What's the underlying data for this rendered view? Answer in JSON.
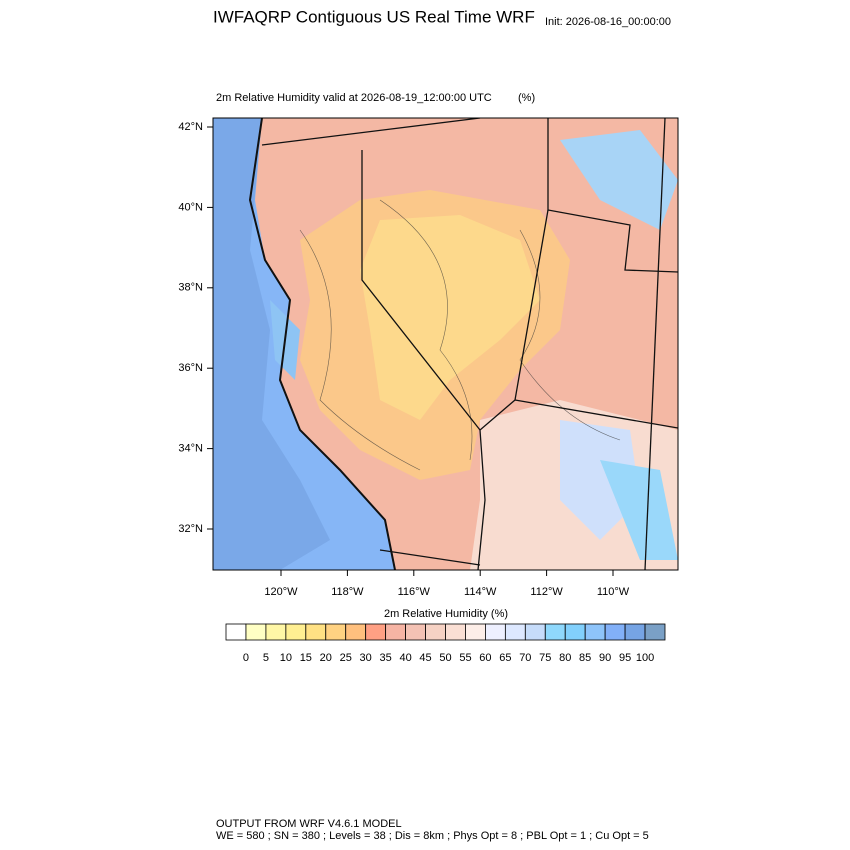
{
  "header": {
    "title": "IWFAQRP Contiguous US Real Time WRF",
    "init": "Init: 2026-08-16_00:00:00"
  },
  "plot": {
    "subtitle": "2m Relative Humidity valid at 2026-08-19_12:00:00 UTC",
    "units": "(%)",
    "lat_labels": [
      "42°N",
      "40°N",
      "38°N",
      "36°N",
      "34°N",
      "32°N"
    ],
    "lon_labels": [
      "120°W",
      "118°W",
      "116°W",
      "114°W",
      "112°W",
      "110°W"
    ]
  },
  "colorbar": {
    "title": "2m Relative Humidity  (%)",
    "levels": [
      0,
      5,
      10,
      15,
      20,
      25,
      30,
      35,
      40,
      45,
      50,
      55,
      60,
      65,
      70,
      75,
      80,
      85,
      90,
      95,
      100
    ],
    "colors": [
      "#ffffff",
      "#ffffc4",
      "#fff7a6",
      "#ffef92",
      "#ffe184",
      "#ffd282",
      "#ffc07e",
      "#ffa084",
      "#f6b4a4",
      "#f4c2b4",
      "#f6d2c4",
      "#fadfd4",
      "#fdeee8",
      "#eef0ff",
      "#dde8ff",
      "#c6dcfa",
      "#8fd8fc",
      "#82d0fc",
      "#8ec4fa",
      "#82b0f8",
      "#76a4e4",
      "#7aa0c6"
    ]
  },
  "footer": [
    "OUTPUT FROM WRF V4.6.1 MODEL",
    "WE = 580 ; SN = 380 ; Levels = 38 ; Dis = 8km ; Phys Opt = 8 ; PBL Opt = 1 ; Cu Opt = 5"
  ]
}
